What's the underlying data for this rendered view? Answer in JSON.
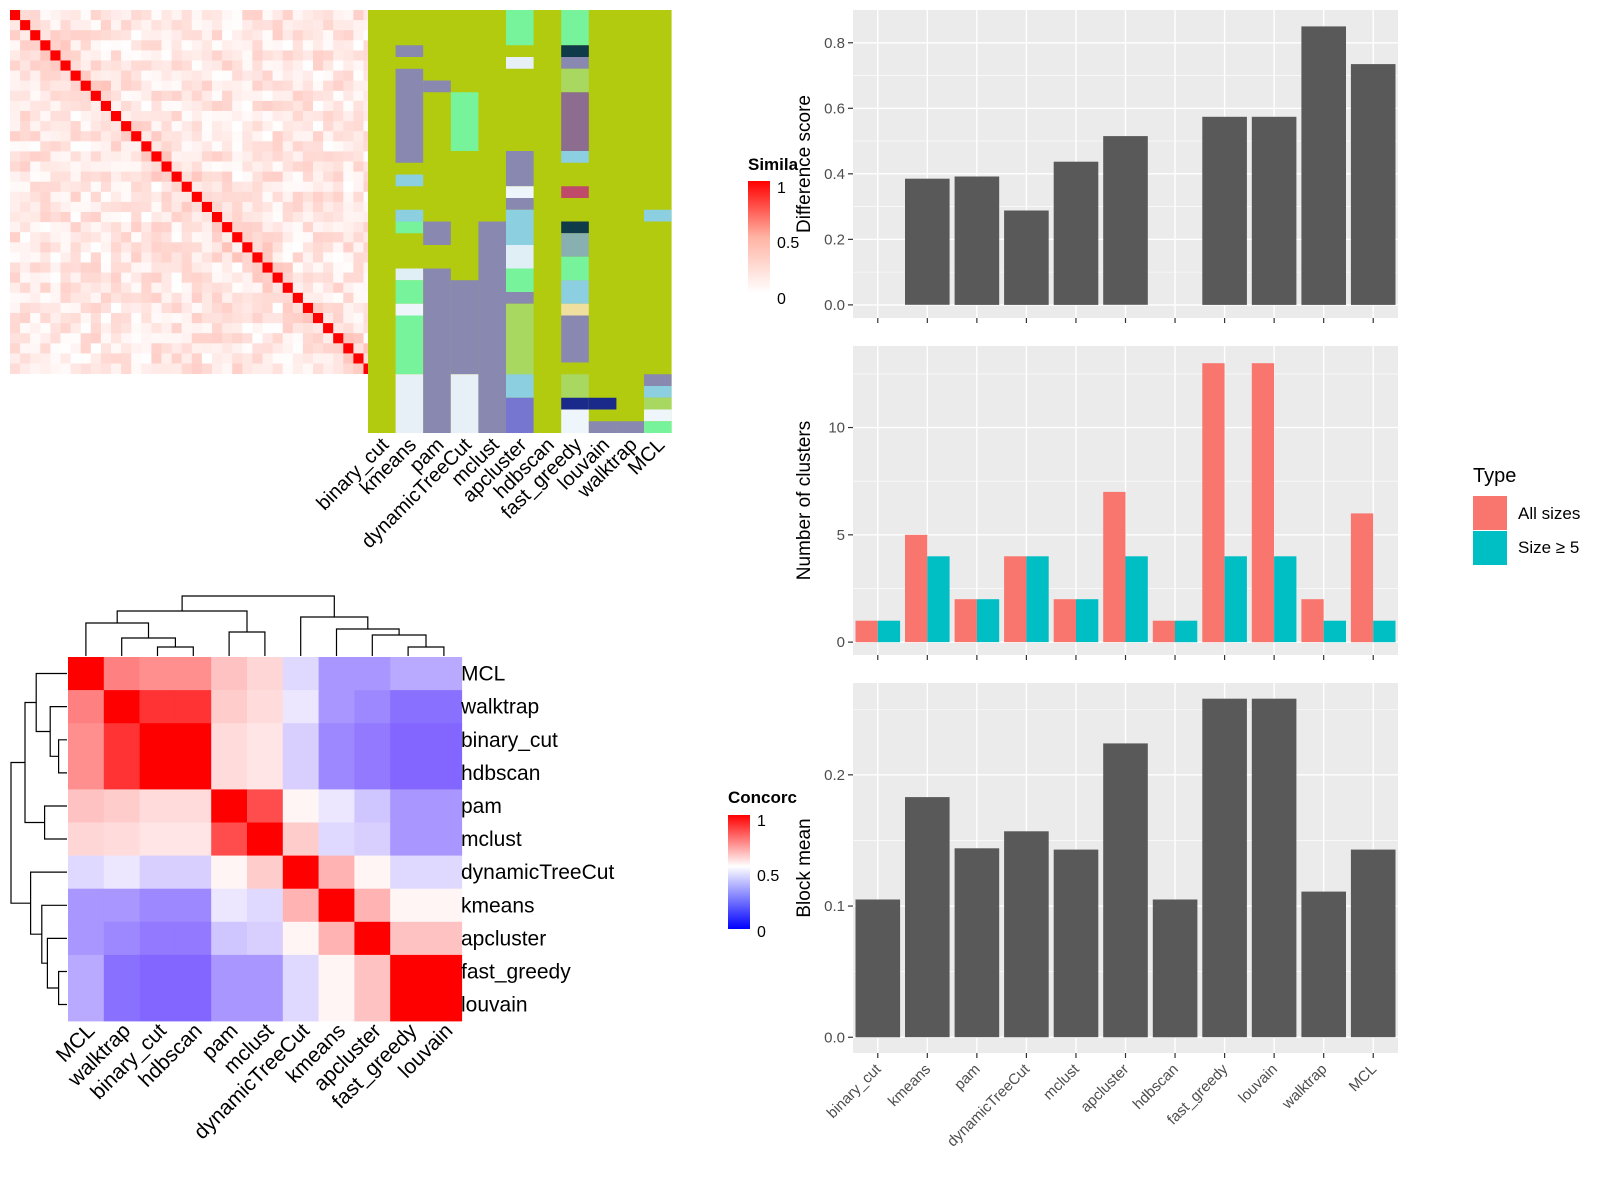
{
  "methods": [
    "binary_cut",
    "kmeans",
    "pam",
    "dynamicTreeCut",
    "mclust",
    "apcluster",
    "hdbscan",
    "fast_greedy",
    "louvain",
    "walktrap",
    "MCL"
  ],
  "colors": {
    "panel_bg": "#ebebeb",
    "grid": "#ffffff",
    "bar": "#595959",
    "all_sizes": "#f8766d",
    "size5": "#00bfc4",
    "heat_high": "#ff0000",
    "heat_mid": "#ffffff",
    "heat_low": "#0000ff",
    "class_base": "#b2cb0e"
  },
  "similarity_heatmap": {
    "legend_title": "Simila",
    "legend_ticks": [
      "1",
      "0.5",
      "0"
    ],
    "n": 36
  },
  "class_heatmap": {
    "column_labels": [
      "binary_cut",
      "kmeans",
      "pam",
      "dynamicTreeCut",
      "mclust",
      "apcluster",
      "hdbscan",
      "fast_greedy",
      "louvain",
      "walktrap",
      "MCL"
    ]
  },
  "concordance_heatmap": {
    "legend_title": "Concorc",
    "legend_ticks": [
      "1",
      "0.5",
      "0"
    ],
    "order": [
      "MCL",
      "walktrap",
      "binary_cut",
      "hdbscan",
      "pam",
      "mclust",
      "dynamicTreeCut",
      "kmeans",
      "apcluster",
      "fast_greedy",
      "louvain"
    ],
    "matrix": [
      [
        1.0,
        0.75,
        0.72,
        0.72,
        0.62,
        0.58,
        0.42,
        0.28,
        0.28,
        0.32,
        0.32
      ],
      [
        0.75,
        1.0,
        0.9,
        0.9,
        0.6,
        0.57,
        0.45,
        0.28,
        0.25,
        0.2,
        0.2
      ],
      [
        0.72,
        0.9,
        1.0,
        1.0,
        0.57,
        0.55,
        0.4,
        0.25,
        0.22,
        0.18,
        0.18
      ],
      [
        0.72,
        0.9,
        1.0,
        1.0,
        0.57,
        0.55,
        0.4,
        0.25,
        0.22,
        0.18,
        0.18
      ],
      [
        0.62,
        0.6,
        0.57,
        0.57,
        1.0,
        0.85,
        0.52,
        0.45,
        0.38,
        0.28,
        0.28
      ],
      [
        0.58,
        0.57,
        0.55,
        0.55,
        0.85,
        1.0,
        0.6,
        0.42,
        0.4,
        0.28,
        0.28
      ],
      [
        0.42,
        0.45,
        0.4,
        0.4,
        0.52,
        0.6,
        1.0,
        0.65,
        0.52,
        0.42,
        0.42
      ],
      [
        0.28,
        0.28,
        0.25,
        0.25,
        0.45,
        0.42,
        0.65,
        1.0,
        0.65,
        0.52,
        0.52
      ],
      [
        0.28,
        0.25,
        0.22,
        0.22,
        0.38,
        0.4,
        0.52,
        0.65,
        1.0,
        0.62,
        0.62
      ],
      [
        0.32,
        0.2,
        0.18,
        0.18,
        0.28,
        0.28,
        0.42,
        0.52,
        0.62,
        1.0,
        1.0
      ],
      [
        0.32,
        0.2,
        0.18,
        0.18,
        0.28,
        0.28,
        0.42,
        0.52,
        0.62,
        1.0,
        1.0
      ]
    ]
  },
  "chart_data": [
    {
      "type": "bar",
      "categories": [
        "binary_cut",
        "kmeans",
        "pam",
        "dynamicTreeCut",
        "mclust",
        "apcluster",
        "hdbscan",
        "fast_greedy",
        "louvain",
        "walktrap",
        "MCL"
      ],
      "values": [
        0,
        0.385,
        0.392,
        0.288,
        0.437,
        0.515,
        0,
        0.574,
        0.574,
        0.85,
        0.735
      ],
      "ylabel": "Difference score",
      "ylim": [
        -0.04,
        0.9
      ],
      "yticks": [
        0,
        0.2,
        0.4,
        0.6,
        0.8
      ],
      "yticklabels": [
        "0.0",
        "0.2",
        "0.4",
        "0.6",
        "0.8"
      ],
      "grid": true
    },
    {
      "type": "bar",
      "categories": [
        "binary_cut",
        "kmeans",
        "pam",
        "dynamicTreeCut",
        "mclust",
        "apcluster",
        "hdbscan",
        "fast_greedy",
        "louvain",
        "walktrap",
        "MCL"
      ],
      "series": [
        {
          "name": "All sizes",
          "values": [
            1,
            5,
            2,
            4,
            2,
            7,
            1,
            13,
            13,
            2,
            6
          ]
        },
        {
          "name": "Size ≥ 5",
          "values": [
            1,
            4,
            2,
            4,
            2,
            4,
            1,
            4,
            4,
            1,
            1
          ]
        }
      ],
      "ylabel": "Number of clusters",
      "ylim": [
        -0.6,
        13.8
      ],
      "yticks": [
        0,
        5,
        10
      ],
      "yticklabels": [
        "0",
        "5",
        "10"
      ],
      "legend_title": "Type",
      "legend": "right",
      "grid": true
    },
    {
      "type": "bar",
      "categories": [
        "binary_cut",
        "kmeans",
        "pam",
        "dynamicTreeCut",
        "mclust",
        "apcluster",
        "hdbscan",
        "fast_greedy",
        "louvain",
        "walktrap",
        "MCL"
      ],
      "values": [
        0.105,
        0.183,
        0.144,
        0.157,
        0.143,
        0.224,
        0.105,
        0.258,
        0.258,
        0.111,
        0.143
      ],
      "ylabel": "Block mean",
      "ylim": [
        -0.012,
        0.27
      ],
      "yticks": [
        0,
        0.1,
        0.2
      ],
      "yticklabels": [
        "0.0",
        "0.1",
        "0.2"
      ],
      "grid": true
    }
  ]
}
